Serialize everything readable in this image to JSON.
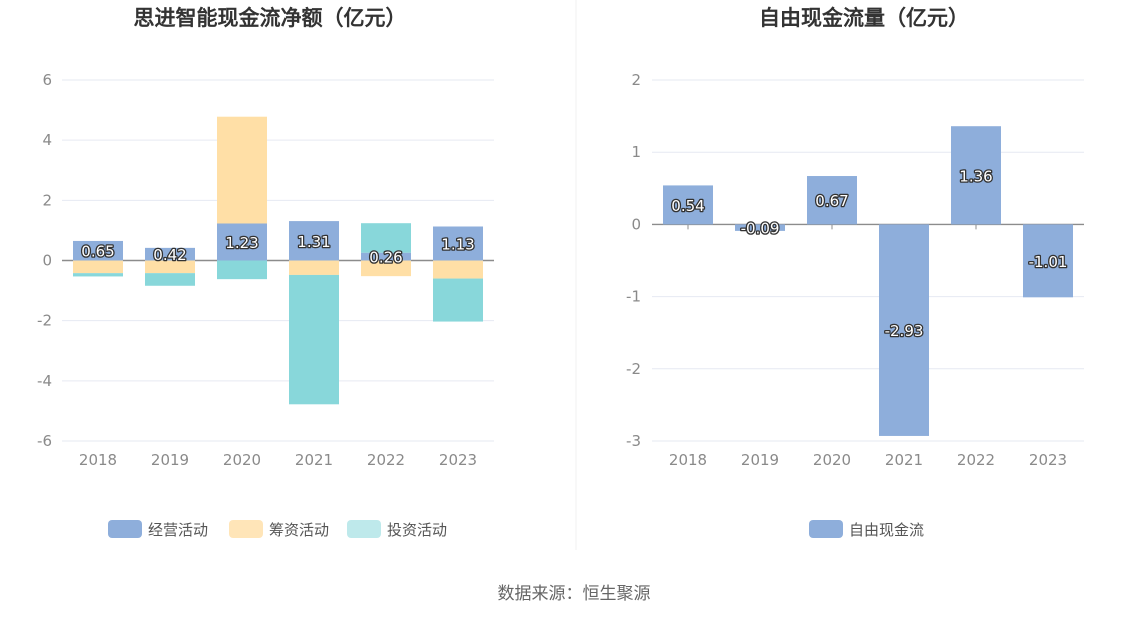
{
  "chart_data": [
    {
      "type": "bar",
      "stacked": true,
      "title": "思进智能现金流净额（亿元）",
      "categories": [
        "2018",
        "2019",
        "2020",
        "2021",
        "2022",
        "2023"
      ],
      "ylim": [
        -6,
        6
      ],
      "yticks": [
        6,
        4,
        2,
        0,
        -2,
        -4,
        -6
      ],
      "grid": true,
      "legend_position": "bottom",
      "series": [
        {
          "name": "经营活动",
          "color": "#8eaedb",
          "values": [
            0.65,
            0.42,
            1.23,
            1.31,
            0.26,
            1.13
          ],
          "labels": [
            "0.65",
            "0.42",
            "1.23",
            "1.31",
            "0.26",
            "1.13"
          ]
        },
        {
          "name": "筹资活动",
          "color": "#ffdfa6",
          "values": [
            -0.42,
            -0.42,
            3.55,
            -0.48,
            -0.52,
            -0.6
          ]
        },
        {
          "name": "投资活动",
          "color": "#88d7da",
          "values": [
            -0.11,
            -0.42,
            -0.62,
            -4.3,
            0.98,
            -1.43
          ]
        }
      ]
    },
    {
      "type": "bar",
      "title": "自由现金流量（亿元）",
      "categories": [
        "2018",
        "2019",
        "2020",
        "2021",
        "2022",
        "2023"
      ],
      "ylim": [
        -3,
        2
      ],
      "yticks": [
        2,
        1,
        0,
        -1,
        -2,
        -3
      ],
      "grid": true,
      "legend_position": "bottom",
      "series": [
        {
          "name": "自由现金流",
          "color": "#8eaedb",
          "values": [
            0.54,
            -0.09,
            0.67,
            -2.93,
            1.36,
            -1.01
          ],
          "labels": [
            "0.54",
            "-0.09",
            "0.67",
            "-2.93",
            "1.36",
            "-1.01"
          ]
        }
      ]
    }
  ],
  "footer": {
    "source": "数据来源：恒生聚源"
  }
}
